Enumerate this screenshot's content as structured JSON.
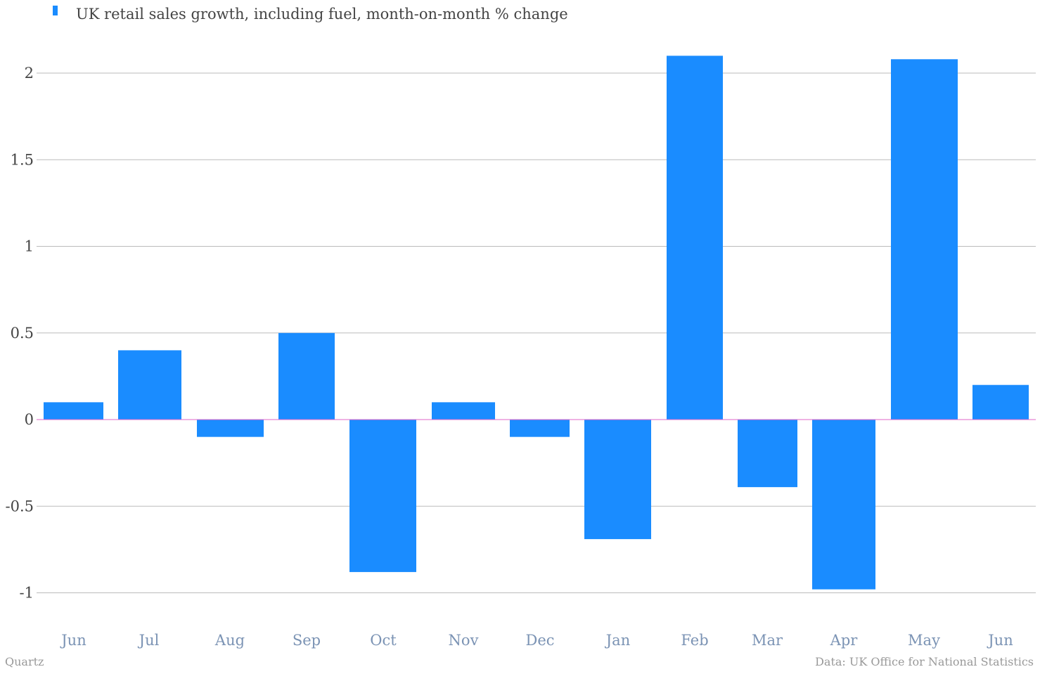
{
  "chart_data": {
    "type": "bar",
    "categories": [
      "Jun",
      "Jul",
      "Aug",
      "Sep",
      "Oct",
      "Nov",
      "Dec",
      "Jan",
      "Feb",
      "Mar",
      "Apr",
      "May",
      "Jun"
    ],
    "series": [
      {
        "name": "UK retail sales growth, including fuel, month-on-month % change",
        "values": [
          0.1,
          0.4,
          -0.1,
          0.5,
          -0.88,
          0.1,
          -0.1,
          -0.69,
          2.1,
          -0.39,
          -0.98,
          2.08,
          0.2
        ]
      }
    ],
    "yticks": [
      -1,
      -0.5,
      0,
      0.5,
      1,
      1.5,
      2
    ],
    "ytick_labels": [
      "-1",
      "-0.5",
      "0",
      "0.5",
      "1",
      "1.5",
      "2"
    ],
    "ylim": [
      -1,
      2
    ],
    "grid": true,
    "legend_position": "top-left",
    "bar_color": "#1a8cff",
    "zero_line_color": "#e064c8",
    "grid_color": "#bbbbbb"
  },
  "footer": {
    "credit": "Quartz",
    "source": "Data: UK Office for National Statistics"
  }
}
